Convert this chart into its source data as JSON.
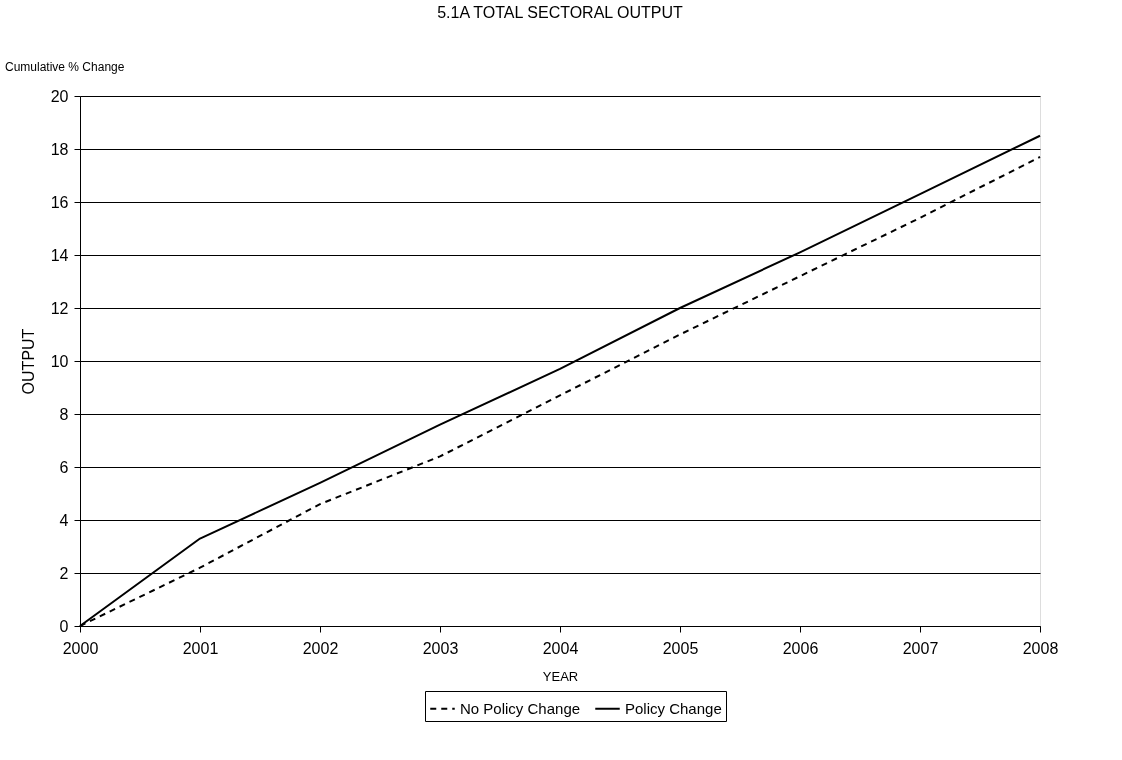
{
  "chart_data": {
    "type": "line",
    "title": "5.1A  TOTAL SECTORAL OUTPUT",
    "subtitle": "Cumulative % Change",
    "xlabel": "YEAR",
    "ylabel": "OUTPUT",
    "x": [
      2000,
      2001,
      2002,
      2003,
      2004,
      2005,
      2006,
      2007,
      2008
    ],
    "series": [
      {
        "name": "No Policy Change",
        "color": "#000000",
        "line_style": "dashed",
        "values": [
          0,
          2.2,
          4.6,
          6.4,
          8.7,
          11.0,
          13.2,
          15.4,
          17.7
        ]
      },
      {
        "name": "Policy Change",
        "color": "#000000",
        "line_style": "solid",
        "values": [
          0,
          3.3,
          5.4,
          7.6,
          9.7,
          12.0,
          14.1,
          16.3,
          18.5
        ]
      }
    ],
    "xlim": [
      2000,
      2008
    ],
    "xticks": [
      2000,
      2001,
      2002,
      2003,
      2004,
      2005,
      2006,
      2007,
      2008
    ],
    "ylim": [
      0,
      20
    ],
    "yticks": [
      0,
      2,
      4,
      6,
      8,
      10,
      12,
      14,
      16,
      18,
      20
    ],
    "grid": "y",
    "legend": "bottom",
    "marker": "none"
  }
}
